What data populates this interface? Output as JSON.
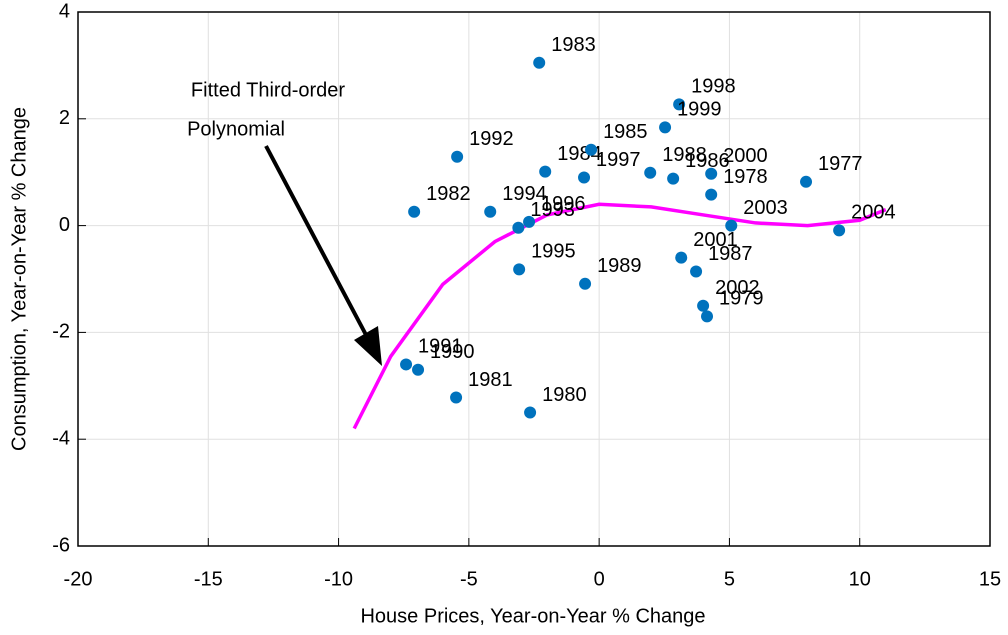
{
  "chart_data": {
    "type": "scatter",
    "xlabel": "House Prices, Year-on-Year % Change",
    "ylabel": "Consumption, Year-on-Year % Change",
    "xlim": [
      -20,
      15
    ],
    "xticks": [
      -20,
      -15,
      -10,
      -5,
      0,
      5,
      10,
      15
    ],
    "ylim": [
      -6,
      4
    ],
    "yticks": [
      -6,
      -4,
      -2,
      0,
      2,
      4
    ],
    "grid": true,
    "color": "#0072bd",
    "point_labels": [
      "1977",
      "1978",
      "1979",
      "1980",
      "1981",
      "1982",
      "1983",
      "1984",
      "1985",
      "1986",
      "1987",
      "1988",
      "1989",
      "1990",
      "1991",
      "1992",
      "1993",
      "1994",
      "1995",
      "1996",
      "1997",
      "1998",
      "1999",
      "2000",
      "2001",
      "2002",
      "2003",
      "2004"
    ],
    "x": [
      7.94,
      4.3,
      4.14,
      -2.65,
      -5.49,
      -7.1,
      -2.3,
      -2.07,
      -0.31,
      2.84,
      3.72,
      1.96,
      -0.54,
      -6.95,
      -7.41,
      -5.45,
      -3.1,
      -4.18,
      -3.07,
      -2.69,
      -0.58,
      3.07,
      2.53,
      4.3,
      3.15,
      3.99,
      5.07,
      9.21
    ],
    "values": [
      0.82,
      0.58,
      -1.7,
      -3.5,
      -3.22,
      0.26,
      3.05,
      1.01,
      1.42,
      0.88,
      -0.86,
      0.99,
      -1.09,
      -2.7,
      -2.6,
      1.29,
      -0.04,
      0.26,
      -0.82,
      0.07,
      0.9,
      2.27,
      1.84,
      0.97,
      -0.6,
      -1.5,
      0,
      -0.09
    ],
    "fit": {
      "color": "#ff00ff",
      "x": [
        -9.4,
        -8,
        -6,
        -4,
        -2,
        0,
        2,
        4,
        6,
        8,
        10,
        11
      ],
      "values": [
        -3.8,
        -2.45,
        -1.1,
        -0.3,
        0.2,
        0.4,
        0.35,
        0.2,
        0.05,
        0,
        0.1,
        0.3
      ]
    },
    "annotation": [
      "Fitted Third-order",
      "Polynomial"
    ]
  }
}
